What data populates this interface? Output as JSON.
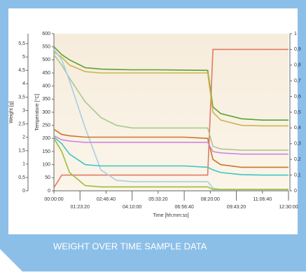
{
  "caption": "WEIGHT OVER TIME SAMPLE DATA",
  "chart_data": {
    "type": "line",
    "xlabel": "Time [hh:mm:ss]",
    "ylabel": "Temperature [°C]",
    "y_weight_label": "Weight [g]",
    "x": [
      0,
      1500,
      3000,
      6000,
      9000,
      12000,
      15000,
      20000,
      25000,
      29500,
      30500,
      32000,
      36000,
      40000,
      45000
    ],
    "xlim": [
      0,
      45000
    ],
    "xticks": [
      {
        "value": 0,
        "label": "00:00:00"
      },
      {
        "value": 5000,
        "label": "01:23:20"
      },
      {
        "value": 10000,
        "label": "02:46:40"
      },
      {
        "value": 15000,
        "label": "04:10:00"
      },
      {
        "value": 20000,
        "label": "05:33:20"
      },
      {
        "value": 25000,
        "label": "06:56:40"
      },
      {
        "value": 30000,
        "label": "08:20:00"
      },
      {
        "value": 35000,
        "label": "09:43:20"
      },
      {
        "value": 40000,
        "label": "11:06:40"
      },
      {
        "value": 45000,
        "label": "12:30:00"
      }
    ],
    "ylim": [
      0,
      600
    ],
    "yticks": [
      0,
      50,
      100,
      150,
      200,
      250,
      300,
      350,
      400,
      450,
      500,
      550,
      600
    ],
    "y_weight_lim": [
      0,
      5.87
    ],
    "y_weight_ticks": [
      0,
      {
        "value": 0.5,
        "label": "0,5"
      },
      1,
      {
        "value": 1.5,
        "label": "1,5"
      },
      2,
      {
        "value": 2.5,
        "label": "2,5"
      },
      3,
      {
        "value": 3.5,
        "label": "3,5"
      },
      4,
      {
        "value": 4.5,
        "label": "4,5"
      },
      5,
      {
        "value": 5.5,
        "label": "5,5"
      }
    ],
    "y2lim": [
      0,
      1
    ],
    "y2ticks": [
      0,
      {
        "value": 0.1,
        "label": "0,1"
      },
      {
        "value": 0.2,
        "label": "0,2"
      },
      {
        "value": 0.3,
        "label": "0,3"
      },
      {
        "value": 0.4,
        "label": "0,4"
      },
      {
        "value": 0.5,
        "label": "0,5"
      },
      {
        "value": 0.6,
        "label": "0,6"
      },
      {
        "value": 0.7,
        "label": "0,7"
      },
      {
        "value": 0.8,
        "label": "0,8"
      },
      {
        "value": 0.9,
        "label": "0,9"
      },
      1
    ],
    "series": [
      {
        "color": "#e07a64",
        "axis": "y2",
        "values": [
          0.02,
          0.1,
          0.1,
          0.1,
          0.1,
          0.1,
          0.1,
          0.1,
          0.1,
          0.1,
          0.9,
          0.9,
          0.9,
          0.9,
          0.9
        ]
      },
      {
        "color": "#5ca22e",
        "values": [
          550,
          520,
          500,
          470,
          465,
          463,
          462,
          462,
          461,
          460,
          320,
          295,
          275,
          270,
          270
        ]
      },
      {
        "color": "#cdb54c",
        "values": [
          530,
          510,
          480,
          455,
          450,
          450,
          450,
          450,
          450,
          450,
          300,
          270,
          250,
          248,
          248
        ]
      },
      {
        "color": "#a9c98f",
        "values": [
          520,
          480,
          430,
          340,
          280,
          250,
          240,
          240,
          240,
          240,
          170,
          160,
          155,
          155,
          155
        ]
      },
      {
        "color": "#a6cfe6",
        "values": [
          540,
          500,
          420,
          240,
          80,
          40,
          35,
          35,
          35,
          35,
          10,
          5,
          5,
          5,
          5
        ]
      },
      {
        "color": "#c8792a",
        "values": [
          235,
          215,
          210,
          205,
          205,
          205,
          205,
          205,
          205,
          200,
          120,
          100,
          90,
          90,
          90
        ]
      },
      {
        "color": "#cc88dd",
        "values": [
          210,
          195,
          190,
          185,
          185,
          185,
          185,
          185,
          185,
          185,
          150,
          145,
          140,
          140,
          140
        ]
      },
      {
        "color": "#3ec6bf",
        "values": [
          205,
          180,
          140,
          100,
          95,
          95,
          95,
          95,
          95,
          90,
          80,
          70,
          62,
          60,
          60
        ]
      },
      {
        "color": "#9bbf3a",
        "values": [
          200,
          150,
          70,
          20,
          15,
          15,
          15,
          15,
          15,
          15,
          5,
          5,
          5,
          5,
          5
        ]
      }
    ]
  }
}
